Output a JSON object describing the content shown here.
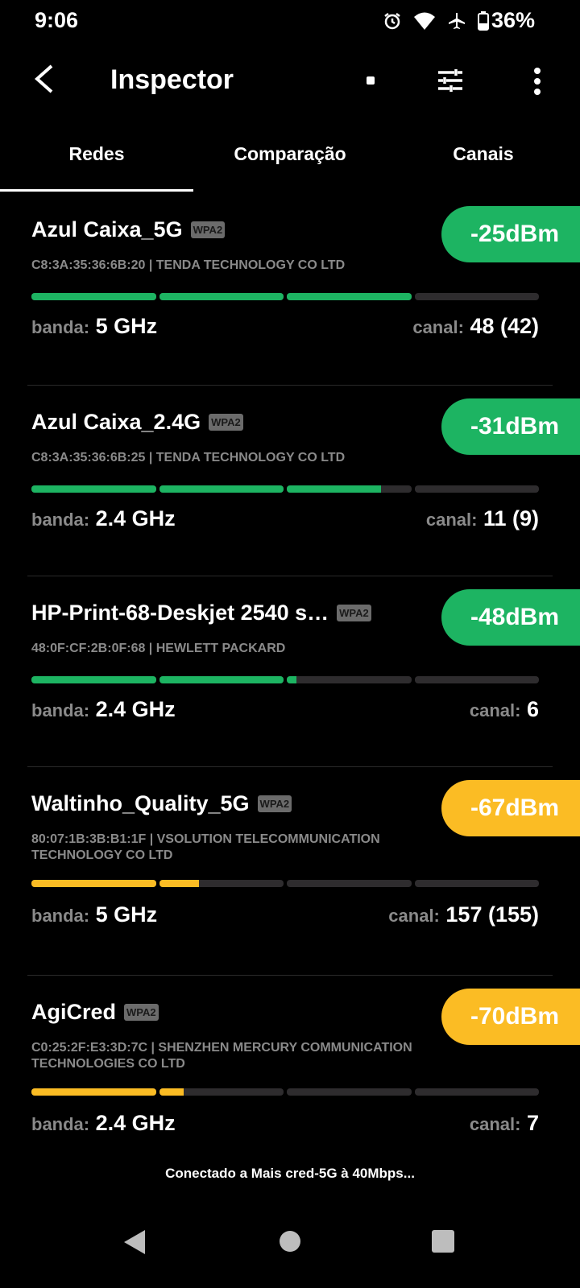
{
  "status_bar": {
    "time": "9:06",
    "battery": "36%",
    "icons": [
      "alarm-icon",
      "wifi-icon",
      "airplane-icon",
      "battery-icon"
    ]
  },
  "app_bar": {
    "title": "Inspector"
  },
  "tabs": [
    {
      "label": "Redes",
      "active": true
    },
    {
      "label": "Comparação"
    },
    {
      "label": "Canais"
    }
  ],
  "labels": {
    "band": "banda:",
    "channel": "canal:"
  },
  "colors": {
    "good": "#1db462",
    "fair": "#fbbc24"
  },
  "networks": [
    {
      "ssid": "Azul Caixa_5G",
      "security": "WPA2",
      "rssi": "-25dBm",
      "vendor": "C8:3A:35:36:6B:20  | TENDA TECHNOLOGY CO LTD",
      "band": "5 GHz",
      "channel": "48 (42)",
      "signal_level": 0.75,
      "color": "#1db462"
    },
    {
      "ssid": "Azul Caixa_2.4G",
      "security": "WPA2",
      "rssi": "-31dBm",
      "vendor": "C8:3A:35:36:6B:25  | TENDA TECHNOLOGY CO LTD",
      "band": "2.4 GHz",
      "channel": "11 (9)",
      "signal_level": 0.69,
      "color": "#1db462"
    },
    {
      "ssid": "HP-Print-68-Deskjet 2540 s…",
      "security": "WPA2",
      "rssi": "-48dBm",
      "vendor": "48:0F:CF:2B:0F:68  | HEWLETT PACKARD",
      "band": "2.4 GHz",
      "channel": "6",
      "signal_level": 0.52,
      "color": "#1db462"
    },
    {
      "ssid": "Waltinho_Quality_5G",
      "security": "WPA2",
      "rssi": "-67dBm",
      "vendor": "80:07:1B:3B:B1:1F  | VSOLUTION TELECOMMUNICATION TECHNOLOGY CO LTD",
      "band": "5 GHz",
      "channel": "157 (155)",
      "signal_level": 0.33,
      "color": "#fbbc24"
    },
    {
      "ssid": "AgiCred",
      "security": "WPA2",
      "rssi": "-70dBm",
      "vendor": "C0:25:2F:E3:3D:7C  | SHENZHEN MERCURY COMMUNICATION TECHNOLOGIES CO LTD",
      "band": "2.4 GHz",
      "channel": "7",
      "signal_level": 0.3,
      "color": "#fbbc24"
    }
  ],
  "footer": {
    "connection": "Conectado a Mais cred-5G à 40Mbps..."
  }
}
